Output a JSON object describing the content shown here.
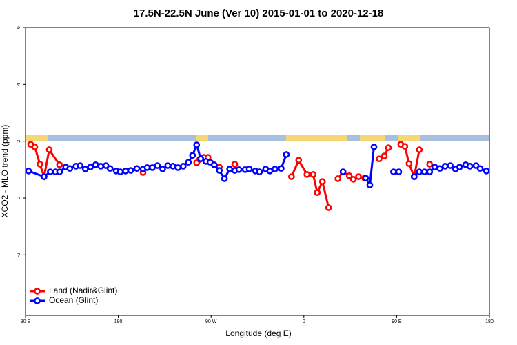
{
  "chart_data": {
    "type": "line",
    "title": "17.5N-22.5N June (Ver 10)   2015-01-01 to 2020-12-18",
    "x_label": "Longitude (deg E)",
    "y_label": "XCO2 - MLO trend (ppm)",
    "xlim": [
      90,
      540
    ],
    "xticks": [
      {
        "value": 90,
        "label": "90 E"
      },
      {
        "value": 180,
        "label": "180"
      },
      {
        "value": 270,
        "label": "90 W"
      },
      {
        "value": 360,
        "label": "0"
      },
      {
        "value": 450,
        "label": "90 E"
      },
      {
        "value": 540,
        "label": "180"
      }
    ],
    "ylim": [
      -4.13,
      6
    ],
    "yticks": [
      -2,
      0,
      2,
      4,
      6
    ],
    "legend": "bottomleft",
    "series": [
      {
        "name": "Land (Nadir&Glint)",
        "color": "#ff0000",
        "x": [
          95,
          99,
          104,
          108,
          113,
          123,
          null,
          204,
          null,
          256,
          259,
          263,
          267,
          278,
          null,
          293,
          null,
          348,
          355,
          363,
          369,
          373,
          378,
          384,
          null,
          393,
          398,
          404,
          408,
          413,
          419,
          null,
          433,
          438,
          442,
          null,
          454,
          458,
          462,
          467,
          472,
          null,
          482
        ],
        "values": [
          1.89,
          1.8,
          1.19,
          0.75,
          1.7,
          1.17,
          null,
          0.9,
          null,
          1.24,
          1.36,
          1.43,
          1.43,
          1.09,
          null,
          1.19,
          null,
          0.75,
          1.33,
          0.83,
          0.83,
          0.19,
          0.58,
          -0.34,
          null,
          0.68,
          0.92,
          0.78,
          0.66,
          0.75,
          0.7,
          null,
          1.38,
          1.48,
          1.77,
          null,
          1.89,
          1.82,
          1.21,
          0.75,
          1.7,
          null,
          1.19
        ]
      },
      {
        "name": "Ocean (Glint)",
        "color": "#0000ff",
        "x": [
          93,
          108,
          114,
          119,
          123,
          129,
          133,
          139,
          143,
          148,
          153,
          158,
          163,
          168,
          172,
          178,
          182,
          187,
          192,
          198,
          204,
          208,
          213,
          218,
          223,
          228,
          233,
          238,
          243,
          248,
          252,
          256,
          260,
          265,
          269,
          273,
          278,
          283,
          288,
          293,
          297,
          303,
          307,
          313,
          317,
          323,
          327,
          332,
          338,
          343,
          null,
          398,
          null,
          420,
          424,
          428,
          null,
          447,
          452,
          null,
          467,
          472,
          477,
          482,
          487,
          492,
          497,
          502,
          507,
          511,
          517,
          521,
          527,
          531,
          537
        ],
        "values": [
          0.95,
          0.75,
          0.92,
          0.92,
          0.92,
          1.09,
          1.04,
          1.12,
          1.14,
          1.02,
          1.09,
          1.17,
          1.12,
          1.14,
          1.04,
          0.95,
          0.92,
          0.95,
          0.97,
          1.04,
          1.02,
          1.07,
          1.07,
          1.14,
          1.02,
          1.14,
          1.12,
          1.07,
          1.12,
          1.26,
          1.5,
          1.87,
          1.38,
          1.29,
          1.26,
          1.17,
          0.97,
          0.68,
          1.02,
          0.97,
          1.0,
          1.0,
          1.02,
          0.95,
          0.92,
          1.02,
          0.95,
          1.02,
          1.04,
          1.53,
          null,
          0.92,
          null,
          0.7,
          0.46,
          1.8,
          null,
          0.92,
          0.92,
          null,
          0.75,
          0.92,
          0.92,
          0.92,
          1.09,
          1.04,
          1.12,
          1.14,
          1.02,
          1.09,
          1.17,
          1.12,
          1.14,
          1.04,
          0.95
        ]
      }
    ]
  }
}
